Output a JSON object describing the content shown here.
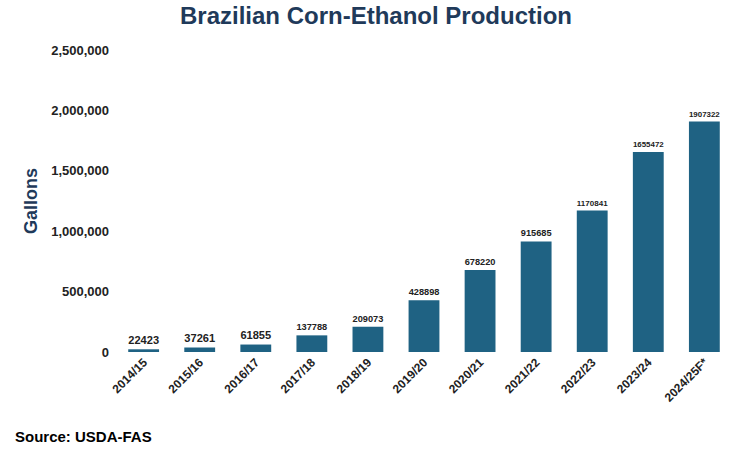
{
  "chart_data": {
    "type": "bar",
    "title": "Brazilian Corn-Ethanol Production",
    "y_label": "Gallons",
    "categories": [
      "2014/15",
      "2015/16",
      "2016/17",
      "2017/18",
      "2018/19",
      "2019/20",
      "2020/21",
      "2021/22",
      "2022/23",
      "2023/24",
      "2024/25F*"
    ],
    "values": [
      22423,
      37261,
      61855,
      137788,
      209073,
      428898,
      678220,
      915685,
      1170841,
      1655472,
      1907322
    ],
    "color": "#1f6283",
    "ylim": [
      0,
      2500000
    ],
    "yticks": [
      0,
      {
        "value": 500000,
        "label": "500,000"
      },
      {
        "value": 1000000,
        "label": "1,000,000"
      },
      {
        "value": 1500000,
        "label": "1,500,000"
      },
      {
        "value": 2000000,
        "label": "2,000,000"
      },
      {
        "value": 2500000,
        "label": "2,500,000"
      }
    ],
    "grid": false,
    "data_labels": true,
    "annotations": [
      "Source: USDA-FAS"
    ]
  }
}
